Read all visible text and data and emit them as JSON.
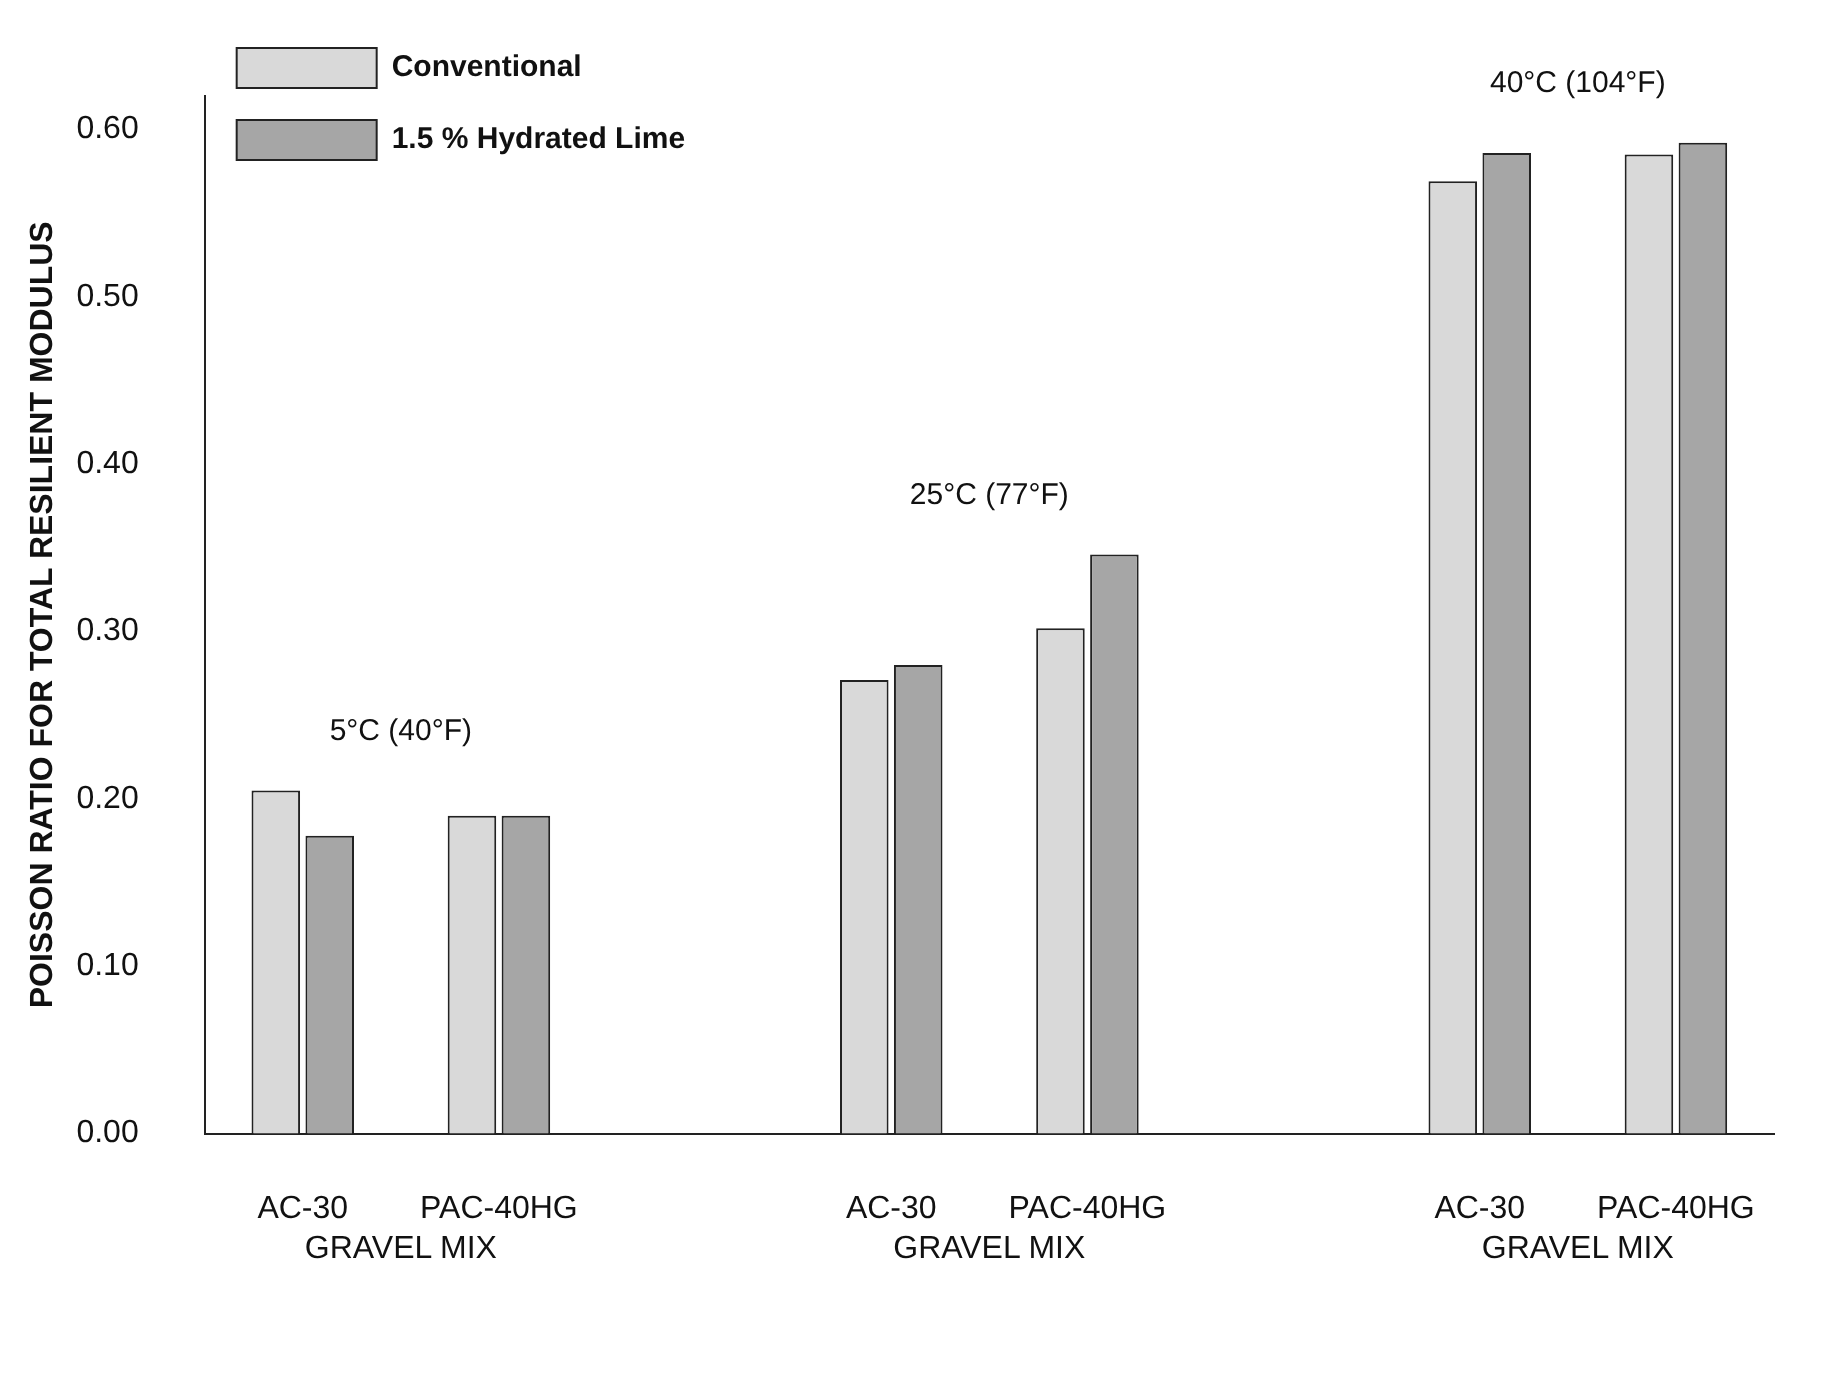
{
  "chart_data": {
    "type": "bar",
    "ylabel": "POISSON RATIO FOR TOTAL RESILIENT MODULUS",
    "categories": [
      "AC-30",
      "PAC-40HG",
      null,
      "AC-30",
      "PAC-40HG",
      null,
      "AC-30",
      "PAC-40HG"
    ],
    "series": [
      {
        "name": "Conventional",
        "color": "#d9d9d9",
        "values": [
          0.205,
          0.19,
          null,
          0.271,
          0.302,
          null,
          0.569,
          0.585
        ]
      },
      {
        "name": "1.5 % Hydrated Lime",
        "color": "#a6a6a6",
        "values": [
          0.178,
          0.19,
          null,
          0.28,
          0.346,
          null,
          0.586,
          0.592
        ]
      }
    ],
    "ylim": [
      0,
      0.62
    ],
    "yticks": [
      {
        "value": 0,
        "label": "0.00"
      },
      {
        "value": 0.1,
        "label": "0.10"
      },
      {
        "value": 0.2,
        "label": "0.20"
      },
      {
        "value": 0.3,
        "label": "0.30"
      },
      {
        "value": 0.4,
        "label": "0.40"
      },
      {
        "value": 0.5,
        "label": "0.50"
      },
      {
        "value": 0.6,
        "label": "0.60"
      }
    ],
    "grid": false,
    "legend": "top left",
    "annotations": [
      "5°C (40°F)",
      "25°C (77°F)",
      "40°C (104°F)",
      "GRAVEL MIX",
      "GRAVEL MIX",
      "GRAVEL MIX"
    ]
  }
}
